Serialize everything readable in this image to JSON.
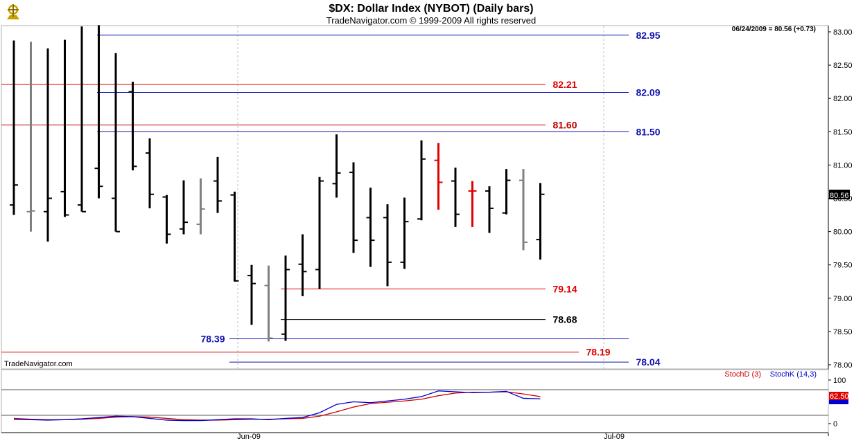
{
  "header": {
    "title": "$DX:  Dollar Index (NYBOT)  (Daily bars)",
    "subtitle": "TradeNavigator.com © 1999-2009 All rights reserved"
  },
  "last_info": "06/24/2009 = 80.56 (+0.73)",
  "watermark": "TradeNavigator.com",
  "price_axis": {
    "ticks": [
      "83.00",
      "82.50",
      "82.00",
      "81.50",
      "81.00",
      "80.50",
      "80.00",
      "79.50",
      "79.00",
      "78.50",
      "78.00"
    ]
  },
  "last_price_label": "80.56",
  "x_axis": {
    "labels": [
      "Jun-09",
      "Jul-09"
    ]
  },
  "levels": [
    {
      "value": 82.95,
      "label": "82.95",
      "color": "#1010b0"
    },
    {
      "value": 82.21,
      "label": "82.21",
      "color": "#e00000"
    },
    {
      "value": 82.09,
      "label": "82.09",
      "color": "#1010b0"
    },
    {
      "value": 81.6,
      "label": "81.60",
      "color": "#c00000"
    },
    {
      "value": 81.5,
      "label": "81.50",
      "color": "#1010b0"
    },
    {
      "value": 79.14,
      "label": "79.14",
      "color": "#e00000"
    },
    {
      "value": 78.68,
      "label": "78.68",
      "color": "#000000"
    },
    {
      "value": 78.39,
      "label": "78.39",
      "color": "#1010b0"
    },
    {
      "value": 78.19,
      "label": "78.19",
      "color": "#e00000"
    },
    {
      "value": 78.04,
      "label": "78.04",
      "color": "#1010b0"
    }
  ],
  "stoch": {
    "legend_d": "StochD (3)",
    "legend_k": "StochK (14,3)",
    "ticks": [
      "100",
      "0"
    ],
    "last_value": "62.50",
    "d_color": "#d00000",
    "k_color": "#0000d0"
  },
  "chart_data": {
    "type": "ohlc",
    "title": "$DX:  Dollar Index (NYBOT)  (Daily bars)",
    "ylim": [
      77.9,
      83.1
    ],
    "bars": [
      {
        "o": 80.4,
        "h": 82.87,
        "l": 80.25,
        "c": 80.7,
        "color": "black"
      },
      {
        "o": 80.3,
        "h": 82.85,
        "l": 80.0,
        "c": 80.31,
        "color": "gray"
      },
      {
        "o": 80.3,
        "h": 82.75,
        "l": 79.85,
        "c": 80.5,
        "color": "black"
      },
      {
        "o": 80.6,
        "h": 82.88,
        "l": 80.22,
        "c": 80.25,
        "color": "black"
      },
      {
        "o": 80.4,
        "h": 83.08,
        "l": 80.3,
        "c": 80.3,
        "color": "black"
      },
      {
        "o": 80.95,
        "h": 83.1,
        "l": 80.5,
        "c": 80.68,
        "color": "black"
      },
      {
        "o": 80.5,
        "h": 82.68,
        "l": 80.0,
        "c": 80.0,
        "color": "black"
      },
      {
        "o": 82.1,
        "h": 82.25,
        "l": 80.92,
        "c": 80.98,
        "color": "black"
      },
      {
        "o": 81.18,
        "h": 81.4,
        "l": 80.35,
        "c": 80.56,
        "color": "black"
      },
      {
        "o": 80.52,
        "h": 80.55,
        "l": 79.82,
        "c": 79.96,
        "color": "black"
      },
      {
        "o": 80.04,
        "h": 80.77,
        "l": 79.96,
        "c": 80.14,
        "color": "black"
      },
      {
        "o": 80.11,
        "h": 80.8,
        "l": 79.96,
        "c": 80.34,
        "color": "gray"
      },
      {
        "o": 80.76,
        "h": 81.12,
        "l": 80.28,
        "c": 80.46,
        "color": "black"
      },
      {
        "o": 80.55,
        "h": 80.6,
        "l": 79.25,
        "c": 79.26,
        "color": "black"
      },
      {
        "o": 79.34,
        "h": 79.5,
        "l": 78.6,
        "c": 79.22,
        "color": "black"
      },
      {
        "o": 79.19,
        "h": 79.49,
        "l": 78.35,
        "c": 78.4,
        "color": "gray"
      },
      {
        "o": 78.46,
        "h": 79.64,
        "l": 78.36,
        "c": 79.43,
        "color": "black"
      },
      {
        "o": 79.51,
        "h": 79.96,
        "l": 79.03,
        "c": 79.4,
        "color": "black"
      },
      {
        "o": 79.43,
        "h": 80.82,
        "l": 79.14,
        "c": 80.76,
        "color": "black"
      },
      {
        "o": 80.72,
        "h": 81.46,
        "l": 80.51,
        "c": 80.88,
        "color": "black"
      },
      {
        "o": 80.89,
        "h": 81.04,
        "l": 79.68,
        "c": 79.87,
        "color": "black"
      },
      {
        "o": 80.21,
        "h": 80.66,
        "l": 79.47,
        "c": 79.87,
        "color": "black"
      },
      {
        "o": 80.21,
        "h": 80.41,
        "l": 79.18,
        "c": 79.54,
        "color": "black"
      },
      {
        "o": 79.54,
        "h": 80.51,
        "l": 79.44,
        "c": 80.15,
        "color": "black"
      },
      {
        "o": 80.19,
        "h": 81.37,
        "l": 80.17,
        "c": 81.09,
        "color": "black"
      },
      {
        "o": 81.07,
        "h": 81.33,
        "l": 80.33,
        "c": 80.74,
        "color": "red"
      },
      {
        "o": 80.76,
        "h": 80.96,
        "l": 80.07,
        "c": 80.26,
        "color": "black"
      },
      {
        "o": 80.61,
        "h": 80.76,
        "l": 80.07,
        "c": 80.61,
        "color": "red"
      },
      {
        "o": 80.61,
        "h": 80.68,
        "l": 79.98,
        "c": 80.35,
        "color": "black"
      },
      {
        "o": 80.28,
        "h": 80.94,
        "l": 80.26,
        "c": 80.77,
        "color": "black"
      },
      {
        "o": 80.77,
        "h": 80.94,
        "l": 79.72,
        "c": 79.84,
        "color": "gray"
      },
      {
        "o": 79.88,
        "h": 80.73,
        "l": 79.58,
        "c": 80.56,
        "color": "black"
      }
    ],
    "stoch_k": [
      10,
      9,
      8,
      9,
      11,
      14,
      17,
      16,
      12,
      8,
      7,
      7,
      9,
      11,
      11,
      9,
      12,
      14,
      25,
      44,
      50,
      48,
      52,
      56,
      62,
      75,
      73,
      71,
      72,
      74,
      58,
      57
    ],
    "stoch_d": [
      12,
      10,
      9,
      9,
      10,
      12,
      15,
      16,
      15,
      12,
      9,
      8,
      8,
      9,
      10,
      10,
      11,
      12,
      17,
      27,
      38,
      46,
      49,
      52,
      56,
      64,
      70,
      72,
      72,
      73,
      68,
      62
    ]
  }
}
